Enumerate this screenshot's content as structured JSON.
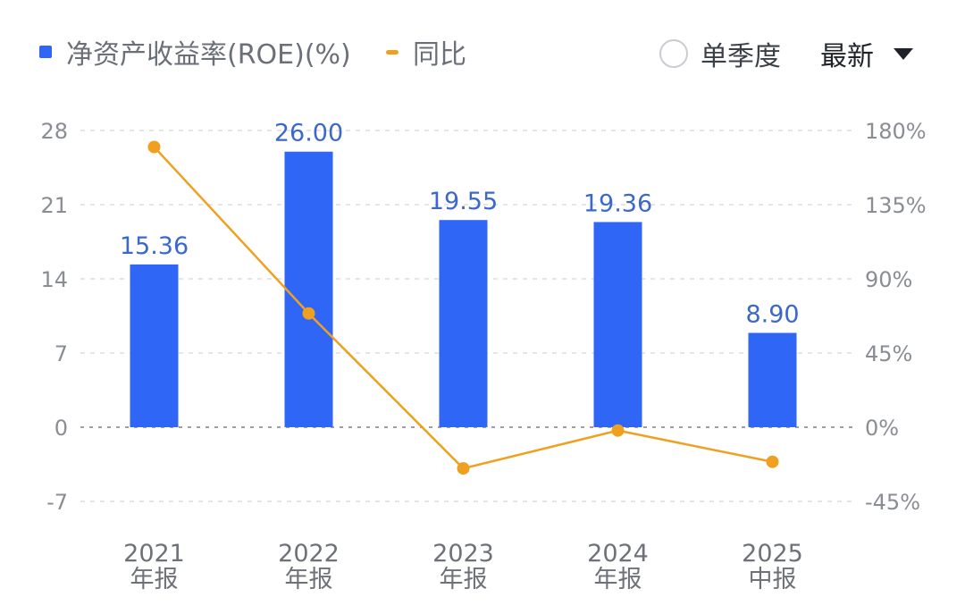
{
  "legend": {
    "roe_label": "净资产收益率(ROE)(%)",
    "yoy_label": "同比"
  },
  "controls": {
    "single_quarter_label": "单季度",
    "sort_label": "最新"
  },
  "colors": {
    "bar": "#2f66f5",
    "line": "#f0a020",
    "label": "#3b68c9"
  },
  "chart_data": {
    "type": "bar",
    "categories": [
      [
        "2021",
        "年报"
      ],
      [
        "2022",
        "年报"
      ],
      [
        "2023",
        "年报"
      ],
      [
        "2024",
        "年报"
      ],
      [
        "2025",
        "中报"
      ]
    ],
    "series": [
      {
        "name": "净资产收益率(ROE)(%)",
        "type": "bar",
        "axis": "left",
        "values": [
          15.36,
          26.0,
          19.55,
          19.36,
          8.9
        ],
        "labels": [
          "15.36",
          "26.00",
          "19.55",
          "19.36",
          "8.90"
        ]
      },
      {
        "name": "同比",
        "type": "line",
        "axis": "right",
        "values": [
          170,
          69,
          -25,
          -2,
          -21
        ]
      }
    ],
    "left_axis": {
      "ticks": [
        28,
        21,
        14,
        7,
        0,
        -7
      ],
      "tick_labels": [
        "28",
        "21",
        "14",
        "7",
        "0",
        "-7"
      ],
      "range": [
        -7,
        28
      ]
    },
    "right_axis": {
      "ticks": [
        180,
        135,
        90,
        45,
        0,
        -45
      ],
      "tick_labels": [
        "180%",
        "135%",
        "90%",
        "45%",
        "0%",
        "-45%"
      ],
      "range": [
        -45,
        180
      ]
    },
    "grid": true,
    "legend_position": "top-left"
  }
}
